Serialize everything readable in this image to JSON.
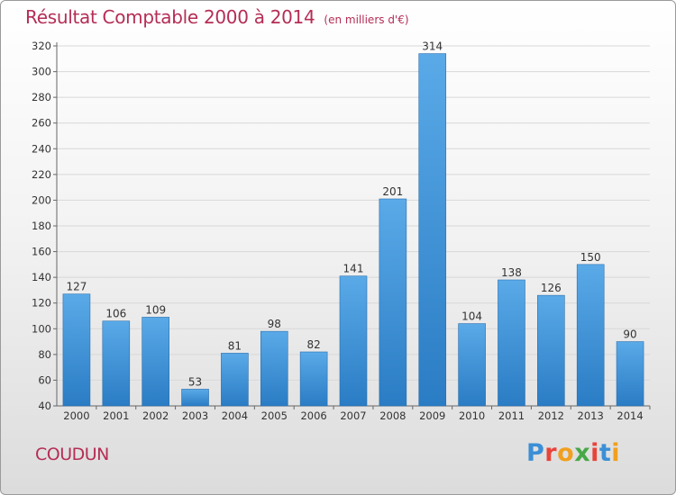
{
  "header": {
    "title": "Résultat Comptable 2000 à 2014",
    "subtitle": "(en milliers d'€)"
  },
  "footer": {
    "commune": "COUDUN",
    "logo": "Proxiti",
    "logo_colors": [
      "#3b8fd6",
      "#e8443a",
      "#f0a020",
      "#46a846",
      "#e8443a",
      "#3b8fd6",
      "#f0a020"
    ]
  },
  "colors": {
    "bar_light": "#5aaae8",
    "bar_dark": "#2a7cc4",
    "title": "#b52d55",
    "grid": "#d8d8d8"
  },
  "chart_data": {
    "type": "bar",
    "title": "Résultat Comptable 2000 à 2014",
    "xlabel": "",
    "ylabel": "(en milliers d'€)",
    "categories": [
      "2000",
      "2001",
      "2002",
      "2003",
      "2004",
      "2005",
      "2006",
      "2007",
      "2008",
      "2009",
      "2010",
      "2011",
      "2012",
      "2013",
      "2014"
    ],
    "values": [
      127,
      106,
      109,
      53,
      81,
      98,
      82,
      141,
      201,
      314,
      104,
      138,
      126,
      150,
      90
    ],
    "ylim": [
      40,
      320
    ],
    "yticks": [
      40,
      60,
      80,
      100,
      120,
      140,
      160,
      180,
      200,
      220,
      240,
      260,
      280,
      300,
      320
    ],
    "grid": true
  }
}
